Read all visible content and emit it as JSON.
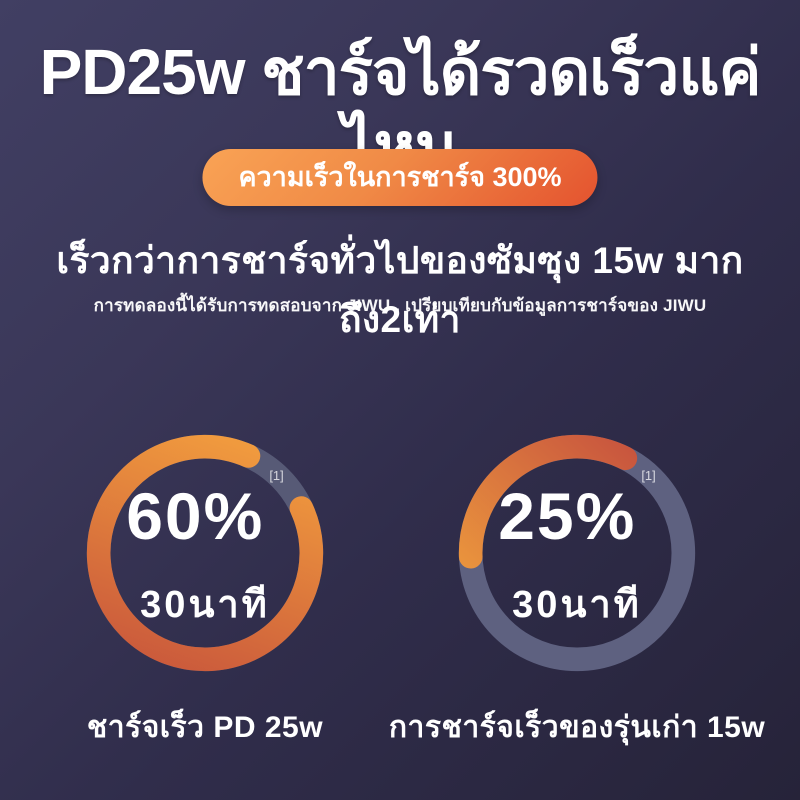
{
  "header": {
    "headline": "PD25w ชาร์จได้รวดเร็วแค่ไหน",
    "badge_label": "ความเร็วในการชาร์จ 300%",
    "subtitle": "เร็วกว่าการชาร์จทั่วไปของซัมซุง 15w มากถึง2เท่า",
    "footnote": "การทดลองนี้ได้รับการทดสอบจาก JIWU , เปรียบเทียบกับข้อมูลการชาร์จของ JIWU"
  },
  "colors": {
    "background_top_left": "#413f63",
    "background_bottom_right": "#262339",
    "badge_gradient_start": "#f9a355",
    "badge_gradient_end": "#e4532f",
    "text": "#ffffff"
  },
  "chart_data": [
    {
      "type": "pie",
      "subtype": "donut-gauge",
      "title": "ชาร์จเร็ว PD 25w",
      "value_pct": 60,
      "value_label": "60%",
      "note_marker": "[1]",
      "time_label": "30นาที",
      "ring": {
        "start_deg": 65,
        "sweep_deg": 319,
        "color_start": "#c6523b",
        "color_end": "#f6a43e",
        "track_color": "#575a76"
      }
    },
    {
      "type": "pie",
      "subtype": "donut-gauge",
      "title": "การชาร์จเร็วของรุ่นเก่า 15w",
      "value_pct": 25,
      "value_label": "25%",
      "note_marker": "[1]",
      "time_label": "30นาที",
      "ring": {
        "start_deg": 268,
        "sweep_deg": 119,
        "color_start": "#c24a3e",
        "color_end": "#f4a73d",
        "track_color": "#5e6180"
      }
    }
  ]
}
